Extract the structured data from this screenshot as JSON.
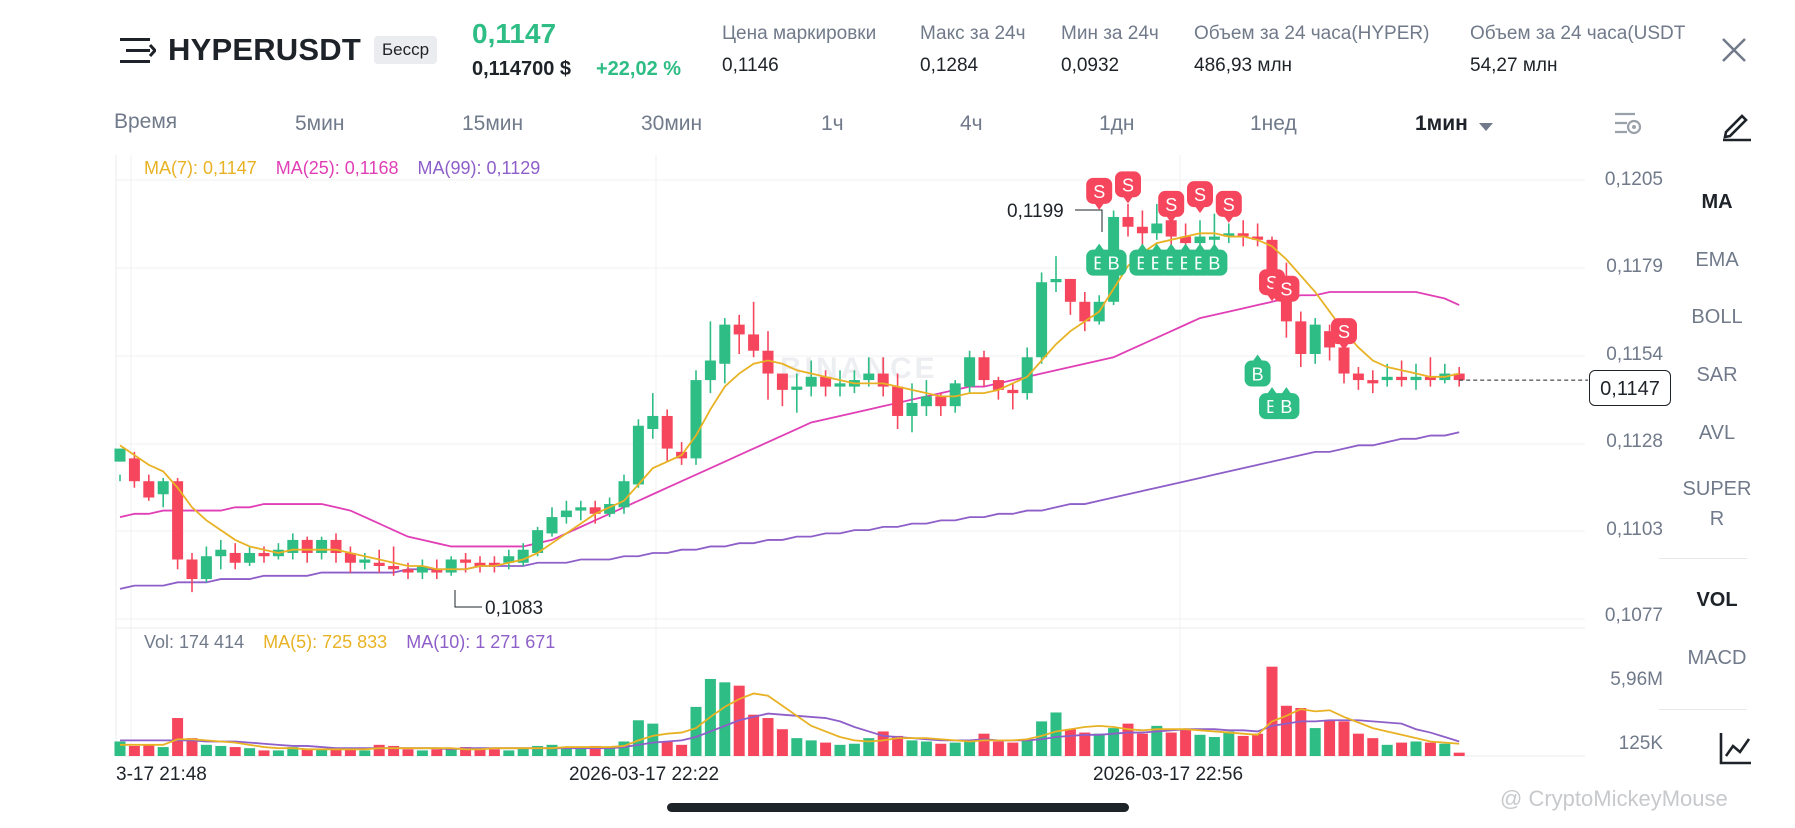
{
  "header": {
    "symbol": "HYPERUSDT",
    "badge": "Бесср",
    "price": "0,1147",
    "price_usd": "0,114700 $",
    "change": "+22,02 %",
    "stats": [
      {
        "label": "Цена маркировки",
        "value": "0,1146"
      },
      {
        "label": "Макс за 24ч",
        "value": "0,1284"
      },
      {
        "label": "Мин за 24ч",
        "value": "0,0932"
      },
      {
        "label": "Объем за 24 часа(HYPER)",
        "value": "486,93 млн"
      },
      {
        "label": "Объем за 24 часа(USDT)",
        "value": "54,27 млн"
      }
    ]
  },
  "timeframes": {
    "label": "Время",
    "items": [
      "5мин",
      "15мин",
      "30мин",
      "1ч",
      "4ч",
      "1дн",
      "1нед"
    ],
    "selected": "1мин"
  },
  "indicators": {
    "main": [
      "MA",
      "EMA",
      "BOLL",
      "SAR",
      "AVL",
      "SUPER",
      "R"
    ],
    "sub": [
      "VOL",
      "MACD"
    ],
    "active_main": "MA",
    "active_sub": "VOL"
  },
  "legend": {
    "ma7": "MA(7): 0,1147",
    "ma25": "MA(25): 0,1168",
    "ma99": "MA(99): 0,1129",
    "vol": "Vol: 174 414",
    "vol_ma5": "MA(5): 725 833",
    "vol_ma10": "MA(10): 1 271 671"
  },
  "price_axis": [
    "0,1205",
    "0,1179",
    "0,1154",
    "0,1128",
    "0,1103",
    "0,1077"
  ],
  "volume_axis": [
    "5,96M",
    "125K"
  ],
  "time_axis": [
    "3-17 21:48",
    "2026-03-17 22:22",
    "2026-03-17 22:56"
  ],
  "annotations": {
    "high": "0,1199",
    "low": "0,1083",
    "current": "0,1147",
    "buy": "B",
    "sell": "S"
  },
  "chart_watermark": "BINANCE",
  "watermark": "@ CryptoMickeyMouse",
  "colors": {
    "up": "#2ebd85",
    "down": "#f6465d",
    "ma7": "#e8b224",
    "ma25": "#e03fb6",
    "ma99": "#8e5fc9",
    "text": "#1e2329",
    "muted": "#707a8a"
  },
  "chart_data": {
    "type": "candlestick",
    "y_range": [
      0.1069,
      0.1214
    ],
    "candles": [
      [
        0.112,
        0.1124,
        0.1116,
        0.1114
      ],
      [
        0.1121,
        0.1114,
        0.1123,
        0.1112
      ],
      [
        0.1114,
        0.1109,
        0.1116,
        0.1108
      ],
      [
        0.111,
        0.1114,
        0.1115,
        0.1106
      ],
      [
        0.1114,
        0.109,
        0.1115,
        0.1087
      ],
      [
        0.109,
        0.1084,
        0.1092,
        0.108
      ],
      [
        0.1084,
        0.1091,
        0.1094,
        0.1083
      ],
      [
        0.1091,
        0.1093,
        0.1096,
        0.1087
      ],
      [
        0.1092,
        0.1089,
        0.1095,
        0.1087
      ],
      [
        0.1089,
        0.1092,
        0.1094,
        0.1088
      ],
      [
        0.1092,
        0.1091,
        0.1094,
        0.1089
      ],
      [
        0.1091,
        0.1093,
        0.1095,
        0.109
      ],
      [
        0.1092,
        0.1096,
        0.1098,
        0.109
      ],
      [
        0.1096,
        0.1092,
        0.1097,
        0.1089
      ],
      [
        0.1092,
        0.1096,
        0.1097,
        0.109
      ],
      [
        0.1096,
        0.1092,
        0.1098,
        0.1089
      ],
      [
        0.1092,
        0.1089,
        0.1094,
        0.1086
      ],
      [
        0.1089,
        0.109,
        0.1092,
        0.1087
      ],
      [
        0.1089,
        0.1088,
        0.1093,
        0.1086
      ],
      [
        0.1088,
        0.1087,
        0.1094,
        0.1085
      ],
      [
        0.1087,
        0.1086,
        0.1089,
        0.1084
      ],
      [
        0.1086,
        0.1088,
        0.109,
        0.1084
      ],
      [
        0.1087,
        0.1086,
        0.109,
        0.1084
      ],
      [
        0.1086,
        0.109,
        0.1091,
        0.1085
      ],
      [
        0.109,
        0.1089,
        0.1092,
        0.1086
      ],
      [
        0.1089,
        0.1088,
        0.1091,
        0.1086
      ],
      [
        0.1089,
        0.1088,
        0.1091,
        0.1086
      ],
      [
        0.1089,
        0.1091,
        0.1093,
        0.1087
      ],
      [
        0.1089,
        0.1093,
        0.1095,
        0.1088
      ],
      [
        0.1092,
        0.1099,
        0.11,
        0.1091
      ],
      [
        0.1098,
        0.1103,
        0.1106,
        0.1097
      ],
      [
        0.1103,
        0.1105,
        0.1108,
        0.1101
      ],
      [
        0.1105,
        0.1106,
        0.1108,
        0.1102
      ],
      [
        0.1106,
        0.1104,
        0.1108,
        0.1101
      ],
      [
        0.1104,
        0.1107,
        0.1109,
        0.1103
      ],
      [
        0.1106,
        0.1114,
        0.1116,
        0.1104
      ],
      [
        0.1113,
        0.1131,
        0.1133,
        0.1112
      ],
      [
        0.113,
        0.1134,
        0.1141,
        0.1127
      ],
      [
        0.1134,
        0.1124,
        0.1136,
        0.112
      ],
      [
        0.1123,
        0.1121,
        0.1126,
        0.1119
      ],
      [
        0.1121,
        0.1145,
        0.1148,
        0.1119
      ],
      [
        0.1145,
        0.1151,
        0.1163,
        0.1141
      ],
      [
        0.115,
        0.1162,
        0.1164,
        0.1144
      ],
      [
        0.1162,
        0.1159,
        0.1165,
        0.1153
      ],
      [
        0.1159,
        0.1154,
        0.1169,
        0.1152
      ],
      [
        0.1154,
        0.1147,
        0.116,
        0.1139
      ],
      [
        0.1147,
        0.1142,
        0.1145,
        0.1137
      ],
      [
        0.1142,
        0.1143,
        0.1147,
        0.1135
      ],
      [
        0.1143,
        0.1146,
        0.1151,
        0.114
      ],
      [
        0.1146,
        0.1143,
        0.1148,
        0.114
      ],
      [
        0.1143,
        0.1144,
        0.1148,
        0.114
      ],
      [
        0.1143,
        0.1145,
        0.1148,
        0.1141
      ],
      [
        0.1145,
        0.1147,
        0.1152,
        0.1143
      ],
      [
        0.1147,
        0.1143,
        0.1152,
        0.114
      ],
      [
        0.1143,
        0.1134,
        0.1147,
        0.113
      ],
      [
        0.1134,
        0.1138,
        0.1144,
        0.1129
      ],
      [
        0.1137,
        0.114,
        0.1145,
        0.1134
      ],
      [
        0.114,
        0.1137,
        0.1141,
        0.1134
      ],
      [
        0.1137,
        0.1144,
        0.1145,
        0.1135
      ],
      [
        0.1143,
        0.1152,
        0.1154,
        0.1141
      ],
      [
        0.1152,
        0.1145,
        0.1154,
        0.1143
      ],
      [
        0.1145,
        0.1142,
        0.1146,
        0.1139
      ],
      [
        0.1142,
        0.1141,
        0.1144,
        0.1136
      ],
      [
        0.1141,
        0.1152,
        0.1155,
        0.1139
      ],
      [
        0.1152,
        0.1175,
        0.1178,
        0.115
      ],
      [
        0.1175,
        0.1176,
        0.1183,
        0.1172
      ],
      [
        0.1176,
        0.1169,
        0.1176,
        0.1165
      ],
      [
        0.1169,
        0.1163,
        0.1172,
        0.116
      ],
      [
        0.1163,
        0.1169,
        0.1171,
        0.1162
      ],
      [
        0.1169,
        0.1195,
        0.1197,
        0.1168
      ],
      [
        0.1195,
        0.1192,
        0.1199,
        0.1189
      ],
      [
        0.1192,
        0.119,
        0.1197,
        0.1186
      ],
      [
        0.119,
        0.1193,
        0.1199,
        0.1188
      ],
      [
        0.1194,
        0.1189,
        0.1195,
        0.1185
      ],
      [
        0.1189,
        0.1187,
        0.1193,
        0.1184
      ],
      [
        0.1187,
        0.1189,
        0.1194,
        0.1185
      ],
      [
        0.1188,
        0.1189,
        0.1196,
        0.1186
      ],
      [
        0.1189,
        0.119,
        0.1193,
        0.1187
      ],
      [
        0.119,
        0.1189,
        0.1194,
        0.1186
      ],
      [
        0.1189,
        0.1188,
        0.1193,
        0.1186
      ],
      [
        0.1188,
        0.1176,
        0.1189,
        0.1172
      ],
      [
        0.1176,
        0.1163,
        0.1181,
        0.1158
      ],
      [
        0.1163,
        0.1153,
        0.1166,
        0.1149
      ],
      [
        0.1153,
        0.1162,
        0.1164,
        0.115
      ],
      [
        0.116,
        0.1155,
        0.1162,
        0.1151
      ],
      [
        0.1155,
        0.1147,
        0.116,
        0.1144
      ],
      [
        0.1147,
        0.1145,
        0.1149,
        0.1142
      ],
      [
        0.1145,
        0.1144,
        0.1148,
        0.1141
      ],
      [
        0.1145,
        0.1146,
        0.115,
        0.1143
      ],
      [
        0.1146,
        0.1145,
        0.1151,
        0.1143
      ],
      [
        0.1145,
        0.1146,
        0.115,
        0.1142
      ],
      [
        0.1146,
        0.1145,
        0.1152,
        0.1143
      ],
      [
        0.1145,
        0.1147,
        0.115,
        0.1144
      ],
      [
        0.1147,
        0.1145,
        0.1149,
        0.1143
      ]
    ],
    "ma7": [
      0.1125,
      0.1122,
      0.1119,
      0.1117,
      0.1112,
      0.1106,
      0.1102,
      0.1099,
      0.1096,
      0.1094,
      0.1093,
      0.1092,
      0.1093,
      0.1093,
      0.1093,
      0.1093,
      0.1092,
      0.1091,
      0.109,
      0.1089,
      0.1088,
      0.1088,
      0.1087,
      0.1087,
      0.1087,
      0.1088,
      0.1088,
      0.1089,
      0.109,
      0.1092,
      0.1095,
      0.1098,
      0.1101,
      0.1104,
      0.1106,
      0.1108,
      0.1113,
      0.1118,
      0.112,
      0.1122,
      0.1128,
      0.1136,
      0.1143,
      0.1147,
      0.115,
      0.1151,
      0.115,
      0.1148,
      0.1147,
      0.1146,
      0.1145,
      0.1144,
      0.1144,
      0.1144,
      0.1143,
      0.1142,
      0.1141,
      0.114,
      0.114,
      0.1141,
      0.1141,
      0.1142,
      0.1144,
      0.1146,
      0.1151,
      0.1156,
      0.116,
      0.1163,
      0.1166,
      0.1173,
      0.118,
      0.1184,
      0.1187,
      0.1188,
      0.1189,
      0.119,
      0.119,
      0.1189,
      0.1189,
      0.1188,
      0.1186,
      0.1182,
      0.1177,
      0.1172,
      0.1166,
      0.116,
      0.1155,
      0.1151,
      0.1149,
      0.1148,
      0.1147,
      0.1146,
      0.1146,
      0.1147
    ],
    "ma25": [
      0.1103,
      0.1104,
      0.1104,
      0.1105,
      0.1105,
      0.1105,
      0.1105,
      0.1105,
      0.1106,
      0.1106,
      0.1107,
      0.1107,
      0.1107,
      0.1107,
      0.1107,
      0.1106,
      0.1105,
      0.1103,
      0.1101,
      0.1099,
      0.1097,
      0.1096,
      0.1095,
      0.1094,
      0.1094,
      0.1094,
      0.1094,
      0.1094,
      0.1094,
      0.1095,
      0.1096,
      0.1098,
      0.11,
      0.1102,
      0.1104,
      0.1106,
      0.1108,
      0.111,
      0.1112,
      0.1114,
      0.1116,
      0.1118,
      0.112,
      0.1122,
      0.1124,
      0.1126,
      0.1128,
      0.113,
      0.1132,
      0.1133,
      0.1134,
      0.1135,
      0.1136,
      0.1137,
      0.1138,
      0.1139,
      0.114,
      0.1141,
      0.1142,
      0.1143,
      0.1143,
      0.1144,
      0.1145,
      0.1146,
      0.1147,
      0.1148,
      0.1149,
      0.115,
      0.1151,
      0.1152,
      0.1154,
      0.1156,
      0.1158,
      0.116,
      0.1162,
      0.1164,
      0.1165,
      0.1166,
      0.1167,
      0.1168,
      0.1169,
      0.117,
      0.1171,
      0.1171,
      0.1172,
      0.1172,
      0.1172,
      0.1172,
      0.1172,
      0.1172,
      0.1172,
      0.1171,
      0.117,
      0.1168
    ],
    "ma99": [
      0.1081,
      0.1082,
      0.1082,
      0.1082,
      0.1083,
      0.1083,
      0.1083,
      0.1084,
      0.1084,
      0.1084,
      0.1085,
      0.1085,
      0.1085,
      0.1085,
      0.1086,
      0.1086,
      0.1086,
      0.1086,
      0.1086,
      0.1086,
      0.1087,
      0.1087,
      0.1087,
      0.1087,
      0.1087,
      0.1088,
      0.1088,
      0.1088,
      0.1088,
      0.1089,
      0.1089,
      0.1089,
      0.109,
      0.109,
      0.109,
      0.1091,
      0.1091,
      0.1092,
      0.1092,
      0.1093,
      0.1093,
      0.1094,
      0.1094,
      0.1095,
      0.1095,
      0.1096,
      0.1096,
      0.1097,
      0.1097,
      0.1098,
      0.1098,
      0.1099,
      0.1099,
      0.11,
      0.11,
      0.1101,
      0.1101,
      0.1102,
      0.1102,
      0.1103,
      0.1103,
      0.1104,
      0.1104,
      0.1105,
      0.1105,
      0.1106,
      0.1107,
      0.1107,
      0.1108,
      0.1109,
      0.111,
      0.1111,
      0.1112,
      0.1113,
      0.1114,
      0.1115,
      0.1116,
      0.1117,
      0.1118,
      0.1119,
      0.112,
      0.1121,
      0.1122,
      0.1123,
      0.1123,
      0.1124,
      0.1125,
      0.1125,
      0.1126,
      0.1127,
      0.1127,
      0.1128,
      0.1128,
      0.1129
    ],
    "volumes": [
      1.3,
      0.9,
      1.0,
      0.8,
      3.4,
      1.6,
      1.0,
      0.9,
      0.8,
      0.7,
      0.5,
      0.5,
      0.8,
      0.6,
      0.6,
      0.7,
      0.6,
      0.5,
      1.0,
      0.9,
      0.6,
      0.5,
      0.6,
      0.7,
      0.8,
      0.7,
      0.6,
      0.5,
      0.7,
      0.9,
      1.0,
      0.8,
      0.7,
      0.9,
      0.8,
      1.3,
      3.2,
      2.9,
      1.3,
      1.0,
      4.4,
      6.9,
      6.6,
      6.3,
      3.7,
      3.4,
      2.4,
      1.6,
      1.4,
      1.2,
      1.0,
      1.1,
      1.6,
      2.2,
      1.8,
      1.4,
      1.3,
      1.1,
      1.2,
      1.4,
      2.0,
      1.3,
      1.2,
      1.5,
      3.1,
      3.9,
      2.4,
      2.1,
      2.0,
      2.5,
      2.9,
      2.0,
      2.7,
      2.1,
      2.4,
      1.9,
      1.7,
      2.2,
      1.8,
      2.0,
      8.0,
      4.5,
      4.3,
      2.5,
      3.2,
      3.1,
      2.0,
      1.6,
      1.0,
      1.2,
      1.3,
      1.2,
      1.1,
      0.3
    ],
    "vol_ma5": [
      1.0,
      1.0,
      1.0,
      1.0,
      1.5,
      1.5,
      1.4,
      1.3,
      1.2,
      1.0,
      0.8,
      0.7,
      0.7,
      0.6,
      0.6,
      0.6,
      0.6,
      0.6,
      0.7,
      0.7,
      0.7,
      0.7,
      0.7,
      0.7,
      0.6,
      0.6,
      0.7,
      0.7,
      0.7,
      0.7,
      0.7,
      0.8,
      0.8,
      0.8,
      0.8,
      0.9,
      1.4,
      1.8,
      2.0,
      2.1,
      2.5,
      3.5,
      4.4,
      5.1,
      5.6,
      5.4,
      4.5,
      3.6,
      2.7,
      2.2,
      1.7,
      1.4,
      1.3,
      1.4,
      1.6,
      1.6,
      1.6,
      1.5,
      1.4,
      1.3,
      1.4,
      1.4,
      1.4,
      1.5,
      1.8,
      2.2,
      2.4,
      2.6,
      2.7,
      2.6,
      2.4,
      2.3,
      2.4,
      2.4,
      2.4,
      2.3,
      2.2,
      2.1,
      2.0,
      1.9,
      3.1,
      3.6,
      4.2,
      4.0,
      4.1,
      3.5,
      3.0,
      2.5,
      2.2,
      1.9,
      1.6,
      1.3,
      1.2,
      1.1
    ],
    "vol_ma10": [
      1.4,
      1.4,
      1.4,
      1.4,
      1.4,
      1.4,
      1.3,
      1.3,
      1.3,
      1.2,
      1.1,
      1.0,
      0.9,
      0.9,
      0.8,
      0.7,
      0.7,
      0.7,
      0.7,
      0.7,
      0.7,
      0.7,
      0.7,
      0.6,
      0.7,
      0.7,
      0.7,
      0.7,
      0.7,
      0.7,
      0.7,
      0.7,
      0.7,
      0.7,
      0.7,
      0.8,
      1.0,
      1.2,
      1.3,
      1.4,
      1.7,
      2.2,
      2.7,
      3.2,
      3.5,
      3.8,
      3.7,
      3.6,
      3.5,
      3.4,
      3.1,
      2.6,
      2.2,
      1.8,
      1.7,
      1.6,
      1.5,
      1.4,
      1.4,
      1.4,
      1.5,
      1.4,
      1.4,
      1.4,
      1.5,
      1.7,
      1.8,
      1.9,
      1.9,
      2.0,
      2.1,
      2.1,
      2.2,
      2.3,
      2.4,
      2.4,
      2.4,
      2.3,
      2.3,
      2.2,
      2.7,
      2.9,
      3.1,
      3.1,
      3.2,
      3.2,
      3.2,
      3.1,
      3.0,
      2.9,
      2.4,
      2.1,
      1.7,
      1.3
    ],
    "sells": [
      [
        68,
        0.1203
      ],
      [
        70,
        0.1205
      ],
      [
        73,
        0.1199
      ],
      [
        75,
        0.1202
      ],
      [
        77,
        0.1199
      ],
      [
        80,
        0.1175
      ],
      [
        81,
        0.1173
      ],
      [
        85,
        0.116
      ]
    ],
    "buys": [
      [
        68,
        0.1181
      ],
      [
        69,
        0.1181
      ],
      [
        71,
        0.1181
      ],
      [
        72,
        0.1181
      ],
      [
        73,
        0.1181
      ],
      [
        74,
        0.1181
      ],
      [
        75,
        0.1181
      ],
      [
        76,
        0.1181
      ],
      [
        79,
        0.1147
      ],
      [
        80,
        0.1137
      ],
      [
        81,
        0.1137
      ]
    ]
  }
}
